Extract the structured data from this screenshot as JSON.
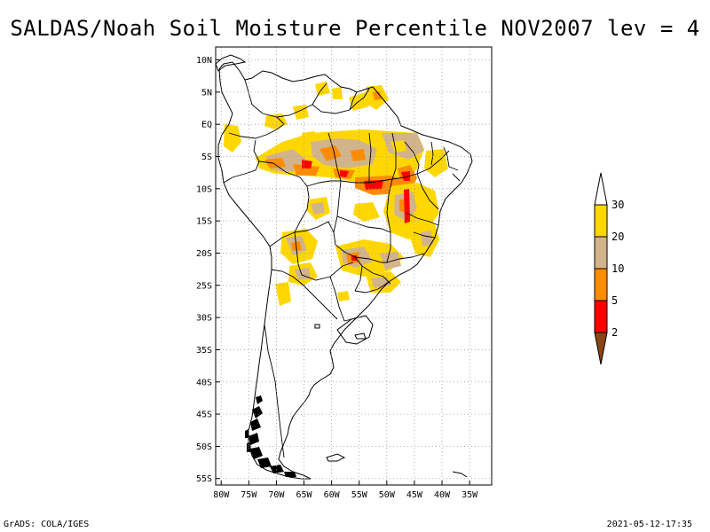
{
  "title": "SALDAS/Noah Soil Moisture Percentile NOV2007 lev = 4",
  "footer": {
    "left": "GrADS: COLA/IGES",
    "right": "2021-05-12-17:35"
  },
  "axes": {
    "lat_ticks": [
      {
        "label": "10N",
        "lat": 10
      },
      {
        "label": "5N",
        "lat": 5
      },
      {
        "label": "EQ",
        "lat": 0
      },
      {
        "label": "5S",
        "lat": -5
      },
      {
        "label": "10S",
        "lat": -10
      },
      {
        "label": "15S",
        "lat": -15
      },
      {
        "label": "20S",
        "lat": -20
      },
      {
        "label": "25S",
        "lat": -25
      },
      {
        "label": "30S",
        "lat": -30
      },
      {
        "label": "35S",
        "lat": -35
      },
      {
        "label": "40S",
        "lat": -40
      },
      {
        "label": "45S",
        "lat": -45
      },
      {
        "label": "50S",
        "lat": -50
      },
      {
        "label": "55S",
        "lat": -55
      }
    ],
    "lon_ticks": [
      {
        "label": "80W",
        "lon": -80
      },
      {
        "label": "75W",
        "lon": -75
      },
      {
        "label": "70W",
        "lon": -70
      },
      {
        "label": "65W",
        "lon": -65
      },
      {
        "label": "60W",
        "lon": -60
      },
      {
        "label": "55W",
        "lon": -55
      },
      {
        "label": "50W",
        "lon": -50
      },
      {
        "label": "45W",
        "lon": -45
      },
      {
        "label": "40W",
        "lon": -40
      },
      {
        "label": "35W",
        "lon": -35
      }
    ],
    "lon_range": [
      -81,
      -31
    ],
    "lat_range": [
      -56,
      12
    ],
    "grid": true
  },
  "legend": {
    "placement": "right",
    "levels": [
      {
        "label": "30",
        "value": 30
      },
      {
        "label": "20",
        "value": 20
      },
      {
        "label": "10",
        "value": 10
      },
      {
        "label": "5",
        "value": 5
      },
      {
        "label": "2",
        "value": 2
      }
    ],
    "bins": [
      {
        "range": "<2",
        "color": "#8b4513"
      },
      {
        "range": "2-5",
        "color": "#ff0000"
      },
      {
        "range": "5-10",
        "color": "#ff8c00"
      },
      {
        "range": "10-20",
        "color": "#d2b48c"
      },
      {
        "range": "20-30",
        "color": "#ffd700"
      },
      {
        "range": ">30",
        "color": "#ffffff"
      }
    ]
  }
}
